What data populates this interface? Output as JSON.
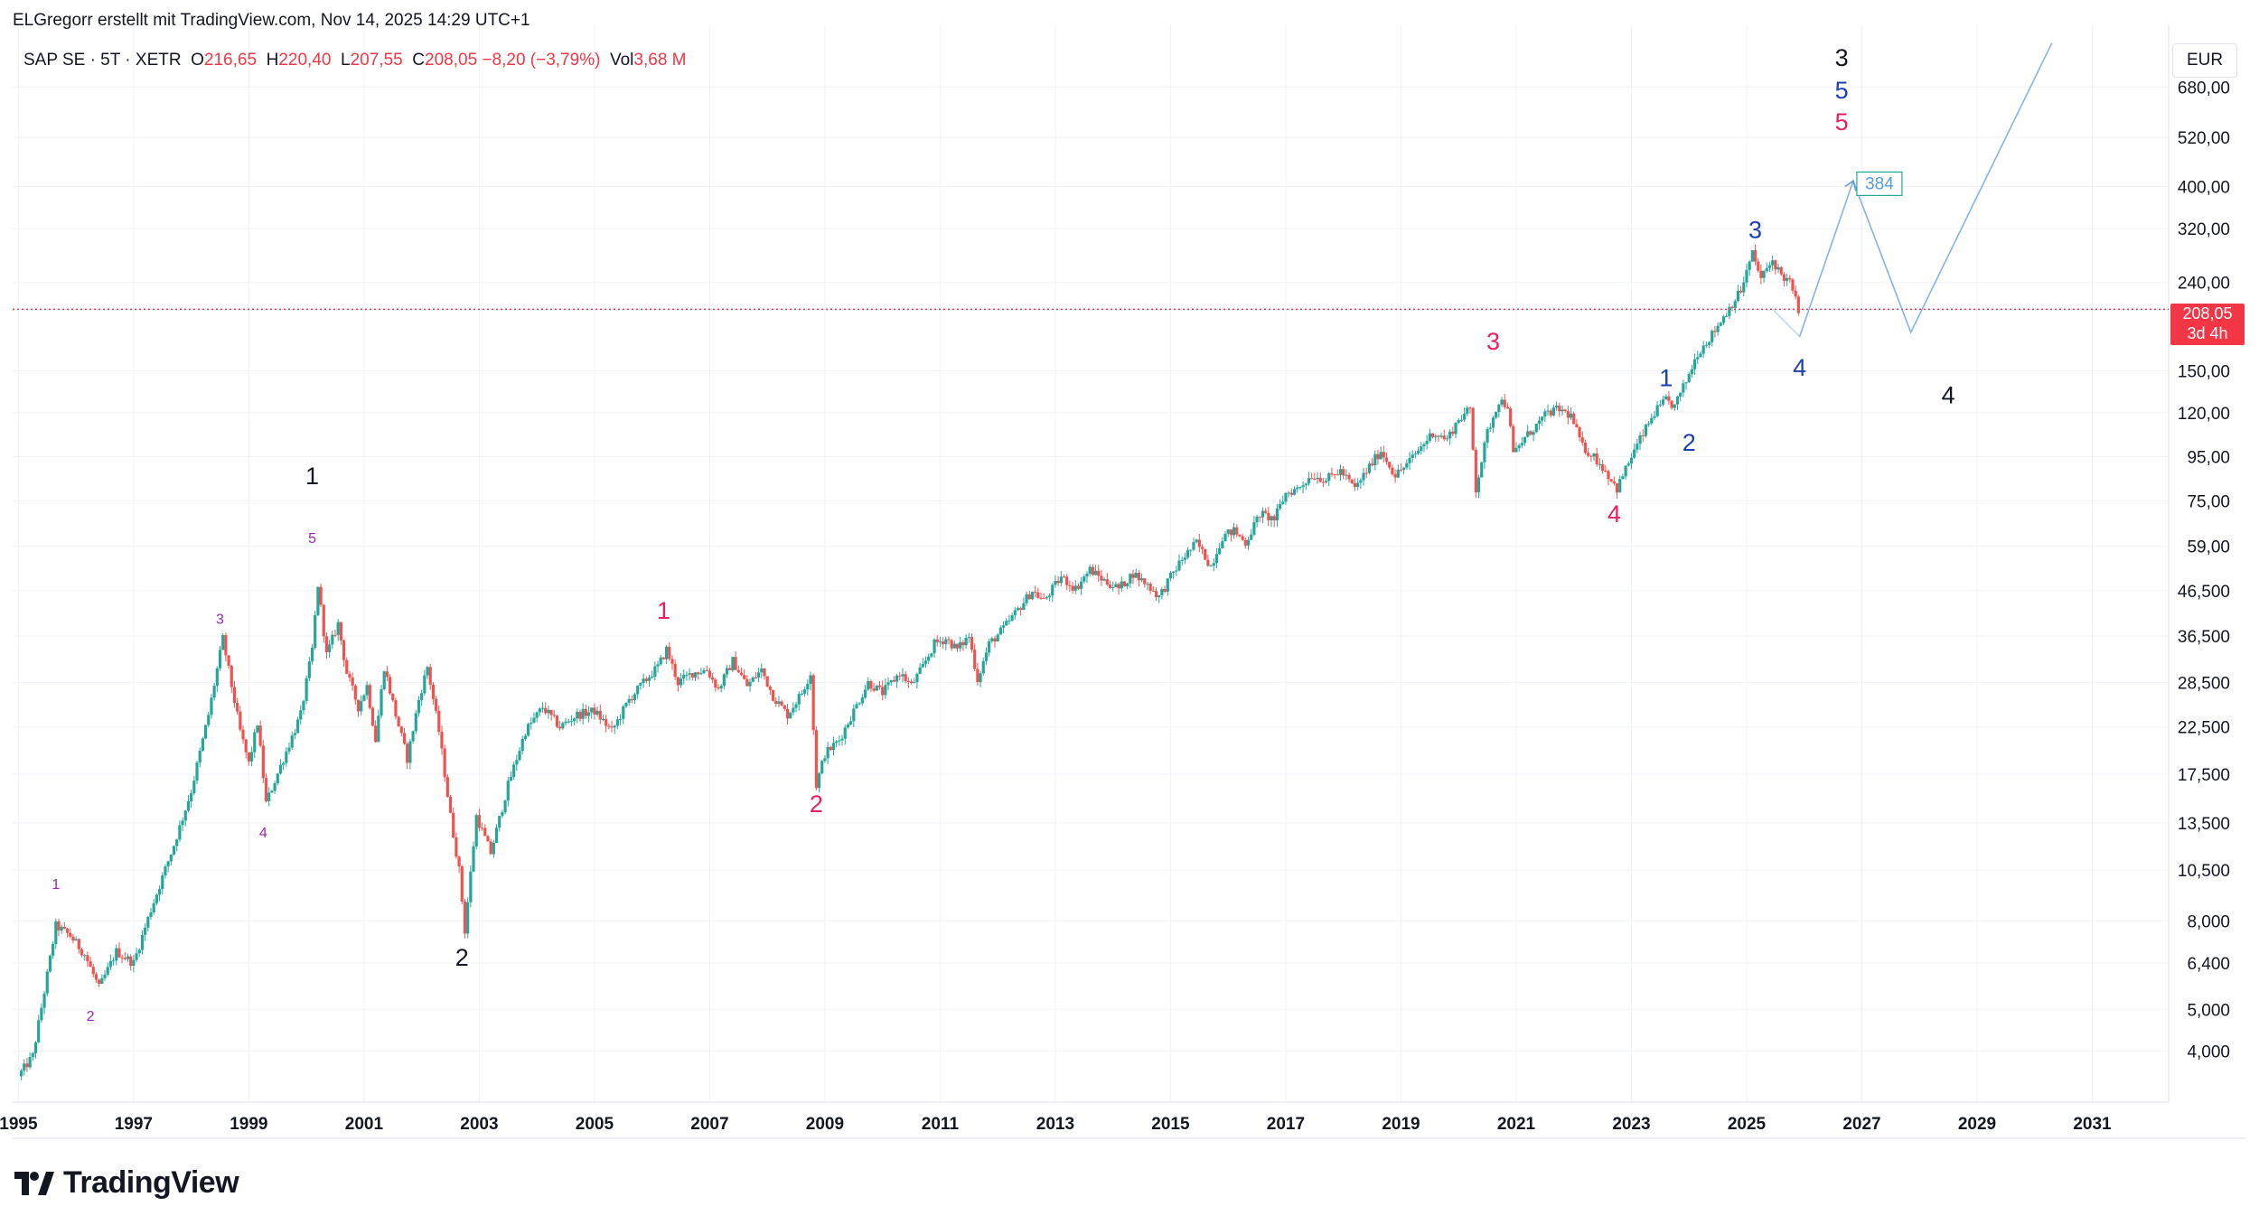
{
  "header": {
    "author_line": "ELGregorr erstellt mit TradingView.com, Nov 14, 2025 14:29 UTC+1"
  },
  "legend": {
    "symbol": "SAP SE · 5T · XETR",
    "o_label": "O",
    "o_value": "216,65",
    "h_label": "H",
    "h_value": "220,40",
    "l_label": "L",
    "l_value": "207,55",
    "c_label": "C",
    "c_value": "208,05",
    "change": "−8,20 (−3,79%)",
    "vol_label": "Vol",
    "vol_value": "3,68 M"
  },
  "currency": "EUR",
  "price_badge": {
    "price": "208,05",
    "countdown": "3d 4h"
  },
  "target_box": "384",
  "brand": "TradingView",
  "colors": {
    "up": "#26a69a",
    "down": "#ef5350",
    "current_line": "#f23645",
    "projection": "#5b9bd5",
    "wave_black": "#131722",
    "wave_blue": "#1e40af",
    "wave_red": "#e91e63",
    "wave_purple": "#9c27b0",
    "grid": "#f0f3fa"
  },
  "chart_data": {
    "type": "candlestick",
    "title": "SAP SE · 5T · XETR",
    "scale": "logarithmic",
    "xlabel": "",
    "ylabel": "EUR",
    "x_range": [
      1994.9,
      2032.2
    ],
    "y_range": [
      3.05,
      900
    ],
    "x_ticks": [
      "1995",
      "1997",
      "1999",
      "2001",
      "2003",
      "2005",
      "2007",
      "2009",
      "2011",
      "2013",
      "2015",
      "2017",
      "2019",
      "2021",
      "2023",
      "2025",
      "2027",
      "2029",
      "2031"
    ],
    "y_ticks": [
      "680,00",
      "520,00",
      "400,00",
      "320,00",
      "240,00",
      "150,00",
      "120,00",
      "95,00",
      "75,00",
      "59,00",
      "46,500",
      "36,500",
      "28,500",
      "22,500",
      "17,500",
      "13,500",
      "10,500",
      "8,000",
      "6,400",
      "5,000",
      "4,000"
    ],
    "current_price": 208.05,
    "price_path": [
      [
        1995.0,
        3.5
      ],
      [
        1995.25,
        3.9
      ],
      [
        1995.45,
        5.5
      ],
      [
        1995.65,
        7.8
      ],
      [
        1995.9,
        7.4
      ],
      [
        1996.15,
        6.7
      ],
      [
        1996.4,
        5.6
      ],
      [
        1996.7,
        6.8
      ],
      [
        1997.0,
        6.4
      ],
      [
        1997.3,
        8.5
      ],
      [
        1997.7,
        12.0
      ],
      [
        1998.0,
        16.0
      ],
      [
        1998.3,
        24.0
      ],
      [
        1998.55,
        36.0
      ],
      [
        1998.7,
        28.0
      ],
      [
        1998.85,
        22.0
      ],
      [
        1999.0,
        18.5
      ],
      [
        1999.15,
        23.0
      ],
      [
        1999.3,
        15.0
      ],
      [
        1999.6,
        19.0
      ],
      [
        1999.9,
        24.0
      ],
      [
        2000.1,
        34.0
      ],
      [
        2000.2,
        48.0
      ],
      [
        2000.35,
        33.0
      ],
      [
        2000.55,
        39.0
      ],
      [
        2000.7,
        30.0
      ],
      [
        2000.9,
        25.0
      ],
      [
        2001.05,
        28.0
      ],
      [
        2001.2,
        21.0
      ],
      [
        2001.35,
        31.0
      ],
      [
        2001.55,
        24.0
      ],
      [
        2001.75,
        19.0
      ],
      [
        2001.95,
        26.0
      ],
      [
        2002.1,
        31.0
      ],
      [
        2002.3,
        22.0
      ],
      [
        2002.5,
        14.0
      ],
      [
        2002.65,
        10.5
      ],
      [
        2002.75,
        7.6
      ],
      [
        2002.95,
        14.0
      ],
      [
        2003.2,
        11.5
      ],
      [
        2003.5,
        16.5
      ],
      [
        2003.8,
        22.0
      ],
      [
        2004.1,
        25.0
      ],
      [
        2004.4,
        22.5
      ],
      [
        2004.7,
        24.0
      ],
      [
        2005.0,
        24.5
      ],
      [
        2005.3,
        22.0
      ],
      [
        2005.6,
        26.0
      ],
      [
        2005.9,
        29.0
      ],
      [
        2006.1,
        31.0
      ],
      [
        2006.25,
        34.0
      ],
      [
        2006.45,
        28.5
      ],
      [
        2006.7,
        30.0
      ],
      [
        2006.95,
        30.5
      ],
      [
        2007.15,
        27.5
      ],
      [
        2007.4,
        32.0
      ],
      [
        2007.65,
        28.0
      ],
      [
        2007.9,
        30.5
      ],
      [
        2008.1,
        26.5
      ],
      [
        2008.35,
        24.0
      ],
      [
        2008.6,
        27.0
      ],
      [
        2008.75,
        30.0
      ],
      [
        2008.85,
        16.5
      ],
      [
        2009.0,
        19.5
      ],
      [
        2009.25,
        21.0
      ],
      [
        2009.5,
        24.5
      ],
      [
        2009.75,
        28.5
      ],
      [
        2010.0,
        27.0
      ],
      [
        2010.3,
        30.0
      ],
      [
        2010.5,
        28.0
      ],
      [
        2010.7,
        31.0
      ],
      [
        2010.9,
        35.0
      ],
      [
        2011.1,
        36.0
      ],
      [
        2011.3,
        34.0
      ],
      [
        2011.5,
        36.5
      ],
      [
        2011.65,
        29.0
      ],
      [
        2011.85,
        35.0
      ],
      [
        2012.1,
        38.0
      ],
      [
        2012.35,
        42.0
      ],
      [
        2012.6,
        46.5
      ],
      [
        2012.8,
        44.0
      ],
      [
        2013.1,
        50.0
      ],
      [
        2013.35,
        47.0
      ],
      [
        2013.6,
        52.0
      ],
      [
        2013.85,
        49.0
      ],
      [
        2014.1,
        47.0
      ],
      [
        2014.35,
        51.0
      ],
      [
        2014.6,
        48.0
      ],
      [
        2014.8,
        45.0
      ],
      [
        2015.0,
        50.0
      ],
      [
        2015.2,
        55.0
      ],
      [
        2015.45,
        60.0
      ],
      [
        2015.7,
        53.0
      ],
      [
        2015.9,
        62.0
      ],
      [
        2016.1,
        64.0
      ],
      [
        2016.3,
        60.0
      ],
      [
        2016.55,
        70.0
      ],
      [
        2016.8,
        68.0
      ],
      [
        2017.0,
        78.0
      ],
      [
        2017.2,
        80.0
      ],
      [
        2017.45,
        86.0
      ],
      [
        2017.7,
        84.0
      ],
      [
        2017.95,
        88.0
      ],
      [
        2018.2,
        80.0
      ],
      [
        2018.45,
        90.0
      ],
      [
        2018.65,
        98.0
      ],
      [
        2018.9,
        86.0
      ],
      [
        2019.1,
        91.0
      ],
      [
        2019.35,
        100.0
      ],
      [
        2019.55,
        108.0
      ],
      [
        2019.8,
        104.0
      ],
      [
        2020.0,
        116.0
      ],
      [
        2020.2,
        122.0
      ],
      [
        2020.3,
        80.0
      ],
      [
        2020.5,
        108.0
      ],
      [
        2020.7,
        128.0
      ],
      [
        2020.85,
        125.0
      ],
      [
        2020.95,
        96.0
      ],
      [
        2021.15,
        105.0
      ],
      [
        2021.35,
        112.0
      ],
      [
        2021.55,
        120.0
      ],
      [
        2021.75,
        122.0
      ],
      [
        2021.95,
        118.0
      ],
      [
        2022.15,
        100.0
      ],
      [
        2022.35,
        95.0
      ],
      [
        2022.55,
        88.0
      ],
      [
        2022.75,
        80.0
      ],
      [
        2022.95,
        92.0
      ],
      [
        2023.15,
        104.0
      ],
      [
        2023.4,
        120.0
      ],
      [
        2023.6,
        128.0
      ],
      [
        2023.75,
        124.0
      ],
      [
        2023.95,
        142.0
      ],
      [
        2024.15,
        165.0
      ],
      [
        2024.4,
        182.0
      ],
      [
        2024.65,
        205.0
      ],
      [
        2024.9,
        230.0
      ],
      [
        2025.1,
        280.0
      ],
      [
        2025.25,
        245.0
      ],
      [
        2025.45,
        270.0
      ],
      [
        2025.6,
        250.0
      ],
      [
        2025.75,
        240.0
      ],
      [
        2025.9,
        208.05
      ]
    ],
    "projection": [
      [
        2025.92,
        180.0
      ],
      [
        2026.85,
        412.0
      ],
      [
        2027.85,
        184.0
      ],
      [
        2030.3,
        860.0
      ]
    ],
    "projection_small": [
      [
        2025.45,
        208.0
      ],
      [
        2025.92,
        180.0
      ]
    ],
    "annotations": [
      {
        "label": "1",
        "x": 2000.1,
        "y": 82,
        "series": "black"
      },
      {
        "label": "2",
        "x": 2002.7,
        "y": 6.3,
        "series": "black"
      },
      {
        "label": "3",
        "x": 2026.65,
        "y": 760,
        "series": "black"
      },
      {
        "label": "4",
        "x": 2028.5,
        "y": 126,
        "series": "black"
      },
      {
        "label": "1",
        "x": 2006.2,
        "y": 40,
        "series": "red"
      },
      {
        "label": "2",
        "x": 2008.85,
        "y": 14.3,
        "series": "red"
      },
      {
        "label": "3",
        "x": 2020.6,
        "y": 168,
        "series": "red"
      },
      {
        "label": "4",
        "x": 2022.7,
        "y": 67,
        "series": "red"
      },
      {
        "label": "5",
        "x": 2026.65,
        "y": 540,
        "series": "red"
      },
      {
        "label": "1",
        "x": 2023.6,
        "y": 138,
        "series": "blue"
      },
      {
        "label": "2",
        "x": 2024.0,
        "y": 98,
        "series": "blue"
      },
      {
        "label": "3",
        "x": 2025.15,
        "y": 304,
        "series": "blue"
      },
      {
        "label": "4",
        "x": 2025.92,
        "y": 146,
        "series": "blue"
      },
      {
        "label": "5",
        "x": 2026.65,
        "y": 640,
        "series": "blue"
      },
      {
        "label": "1",
        "x": 1995.65,
        "y": 9.5,
        "series": "purple"
      },
      {
        "label": "2",
        "x": 1996.25,
        "y": 4.7,
        "series": "purple"
      },
      {
        "label": "3",
        "x": 1998.5,
        "y": 39,
        "series": "purple"
      },
      {
        "label": "4",
        "x": 1999.25,
        "y": 12.5,
        "series": "purple"
      },
      {
        "label": "5",
        "x": 2000.1,
        "y": 60,
        "series": "purple"
      }
    ]
  }
}
